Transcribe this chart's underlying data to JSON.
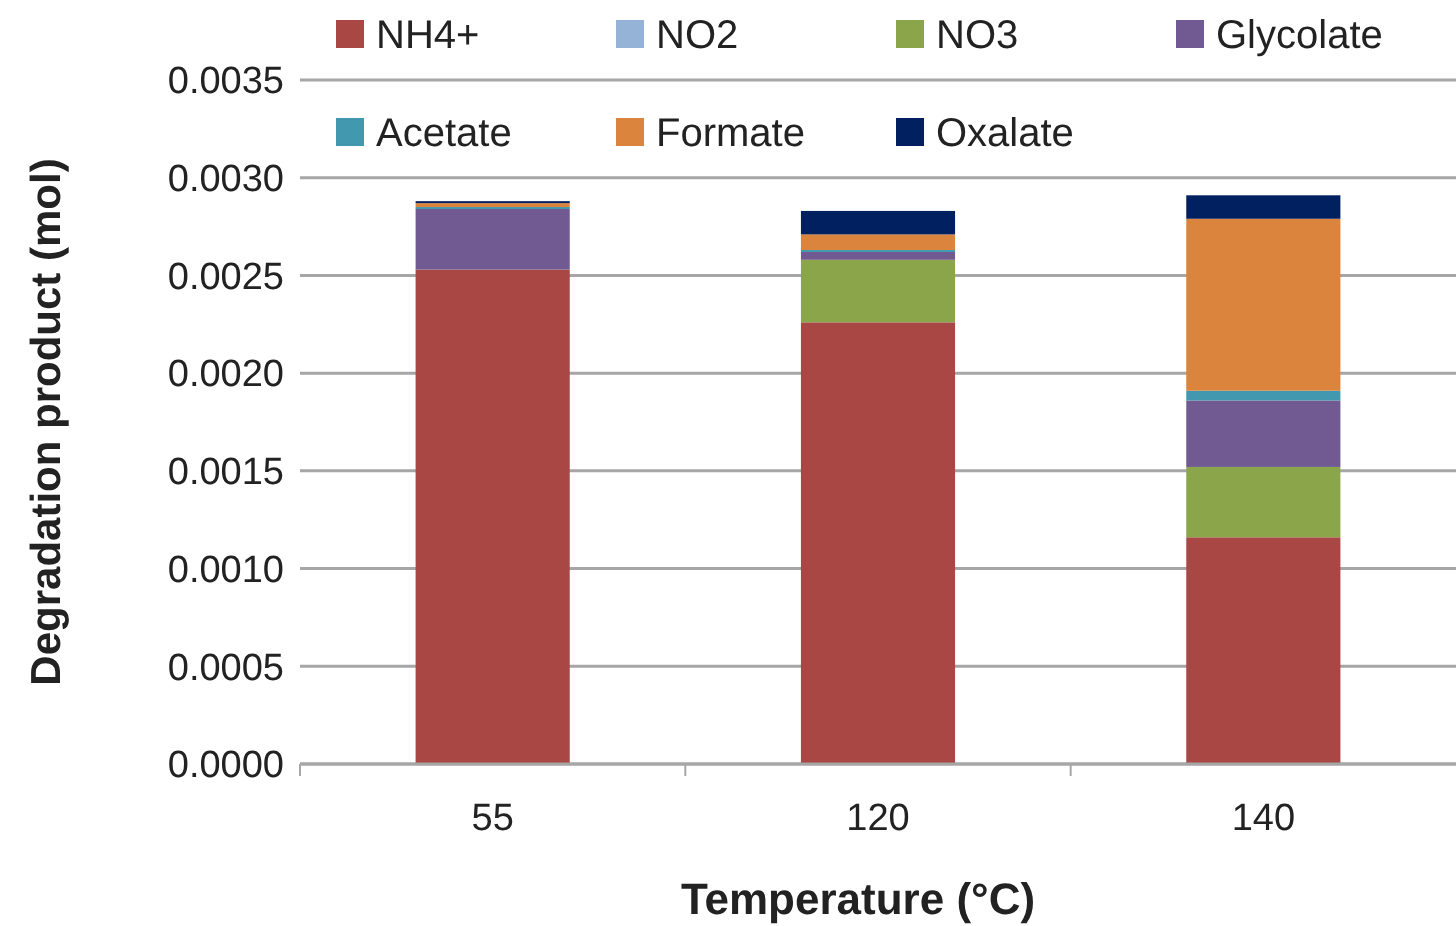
{
  "chart_data": {
    "type": "bar",
    "stacked": true,
    "xlabel": "Temperature (°C)",
    "ylabel": "Degradation product (mol)",
    "categories": [
      "55",
      "120",
      "140"
    ],
    "series": [
      {
        "name": "NH4+",
        "color": "#a84743",
        "values": [
          0.00253,
          0.00226,
          0.00116
        ]
      },
      {
        "name": "NO2",
        "color": "#95b3d7",
        "values": [
          0,
          0,
          0
        ]
      },
      {
        "name": "NO3",
        "color": "#8ba54b",
        "values": [
          0,
          0.00032,
          0.00036
        ]
      },
      {
        "name": "Glycolate",
        "color": "#715a91",
        "values": [
          0.00031,
          4e-05,
          0.00034
        ]
      },
      {
        "name": "Acetate",
        "color": "#4198af",
        "values": [
          1e-05,
          1e-05,
          5e-05
        ]
      },
      {
        "name": "Formate",
        "color": "#db843d",
        "values": [
          2e-05,
          8e-05,
          0.00088
        ]
      },
      {
        "name": "Oxalate",
        "color": "#002060",
        "values": [
          1e-05,
          0.00012,
          0.00012
        ]
      }
    ],
    "ylim": [
      0,
      0.0035
    ],
    "yticks": [
      {
        "value": 0,
        "label": "0.0000"
      },
      {
        "value": 0.0005,
        "label": "0.0005"
      },
      {
        "value": 0.001,
        "label": "0.0010"
      },
      {
        "value": 0.0015,
        "label": "0.0015"
      },
      {
        "value": 0.002,
        "label": "0.0020"
      },
      {
        "value": 0.0025,
        "label": "0.0025"
      },
      {
        "value": 0.003,
        "label": "0.0030"
      },
      {
        "value": 0.0035,
        "label": "0.0035"
      }
    ],
    "grid": "y",
    "legend": "top"
  }
}
